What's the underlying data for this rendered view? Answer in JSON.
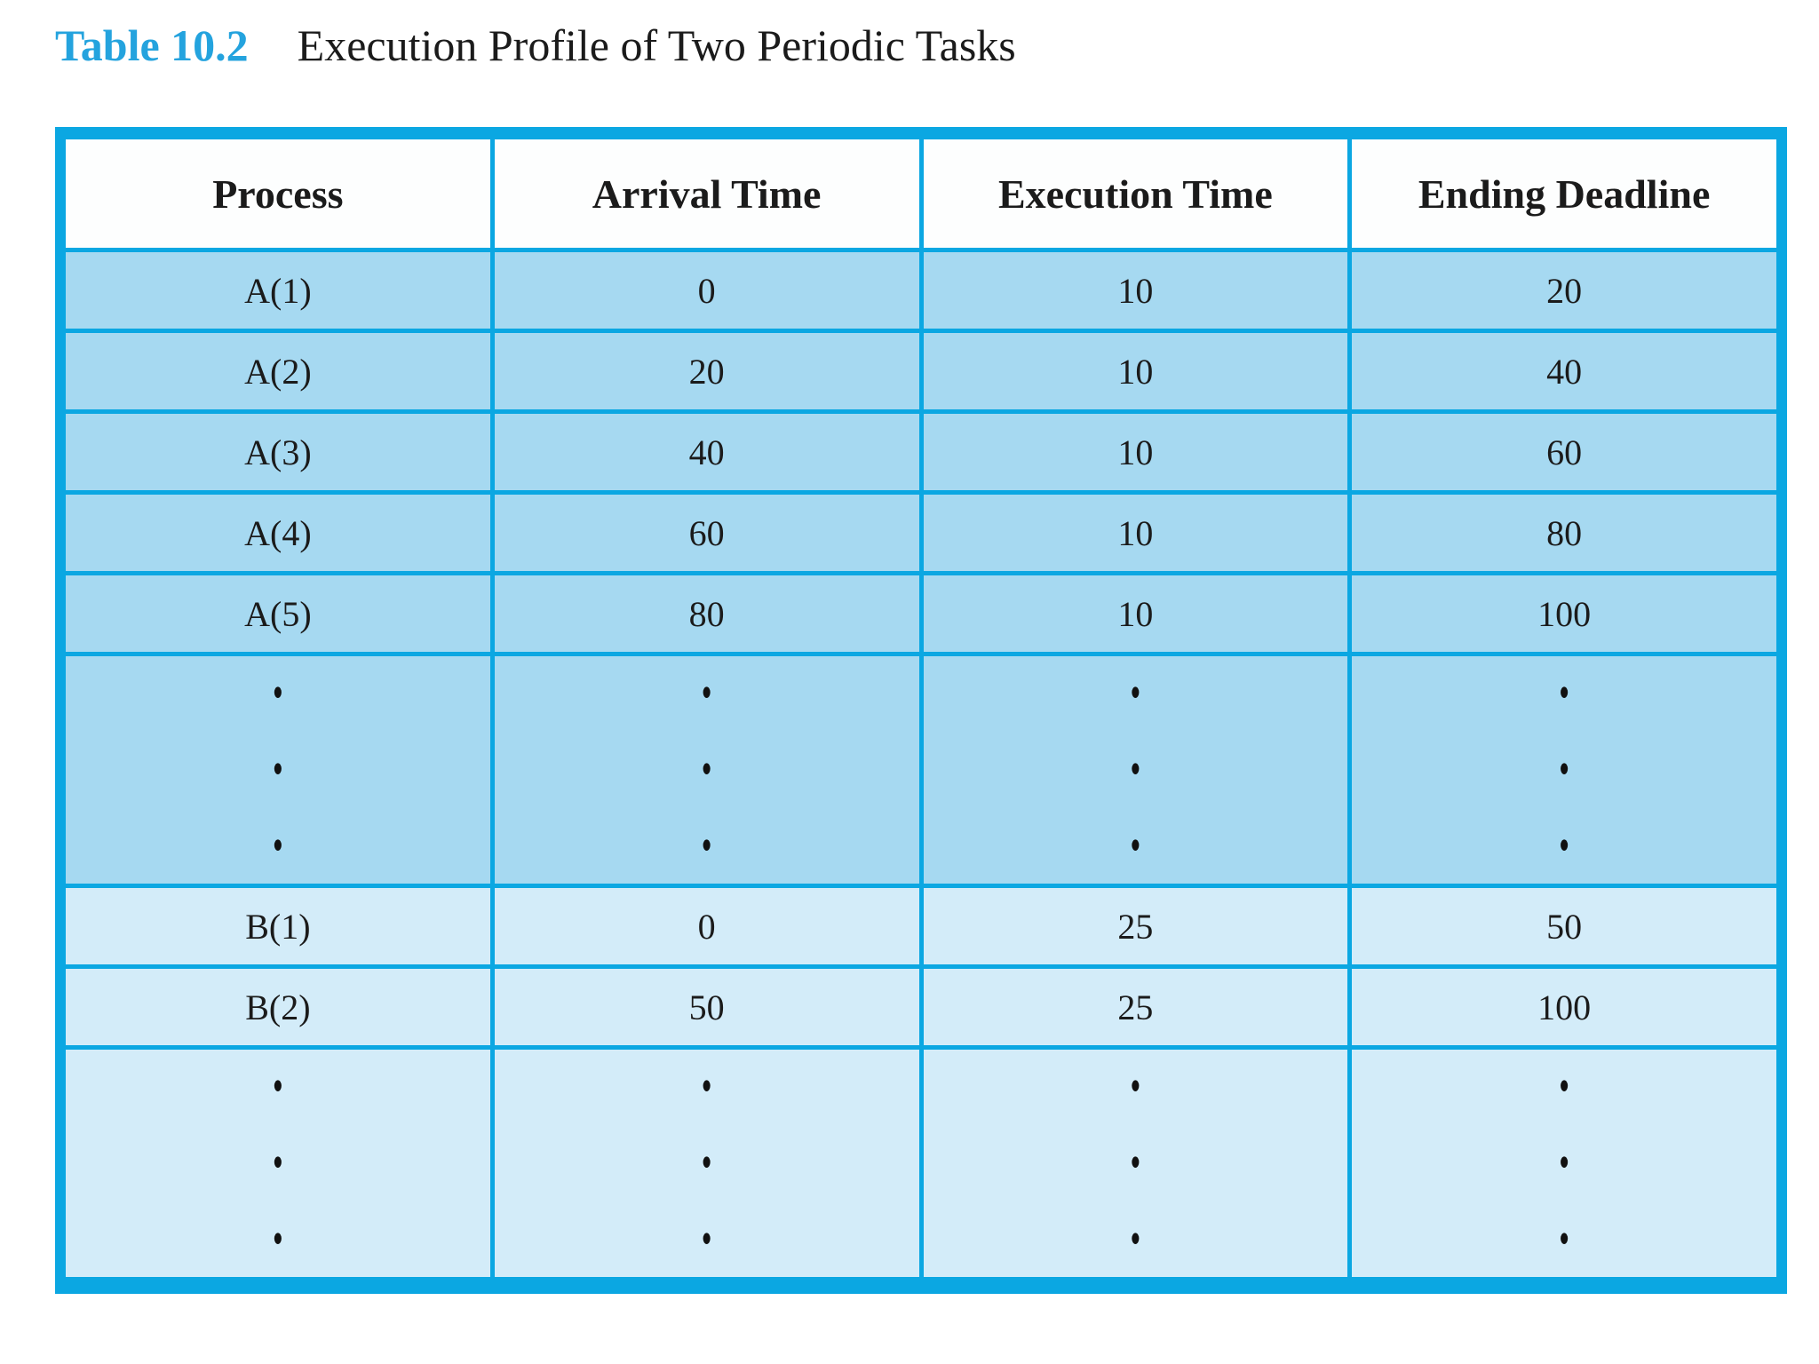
{
  "caption": {
    "label": "Table 10.2",
    "title": "Execution Profile of Two Periodic Tasks"
  },
  "colors": {
    "caption_accent": "#24a3de",
    "table_border": "#0ba7e2",
    "header_bg": "#fdfefe",
    "group_a_bg": "#a6d9f1",
    "group_b_bg": "#d3ecf9",
    "text": "#1b1b1b"
  },
  "table": {
    "columns": [
      "Process",
      "Arrival Time",
      "Execution Time",
      "Ending Deadline"
    ],
    "ellipsis_symbol": "•",
    "ellipsis_dots_per_cell": 3,
    "groups": [
      {
        "name": "A",
        "bg": "#a6d9f1",
        "rows": [
          [
            "A(1)",
            "0",
            "10",
            "20"
          ],
          [
            "A(2)",
            "20",
            "10",
            "40"
          ],
          [
            "A(3)",
            "40",
            "10",
            "60"
          ],
          [
            "A(4)",
            "60",
            "10",
            "80"
          ],
          [
            "A(5)",
            "80",
            "10",
            "100"
          ]
        ],
        "ellipsis": true
      },
      {
        "name": "B",
        "bg": "#d3ecf9",
        "rows": [
          [
            "B(1)",
            "0",
            "25",
            "50"
          ],
          [
            "B(2)",
            "50",
            "25",
            "100"
          ]
        ],
        "ellipsis": true
      }
    ]
  },
  "chart_data": {
    "type": "table",
    "title": "Table 10.2  Execution Profile of Two Periodic Tasks",
    "columns": [
      "Process",
      "Arrival Time",
      "Execution Time",
      "Ending Deadline"
    ],
    "rows": [
      [
        "A(1)",
        0,
        10,
        20
      ],
      [
        "A(2)",
        20,
        10,
        40
      ],
      [
        "A(3)",
        40,
        10,
        60
      ],
      [
        "A(4)",
        60,
        10,
        80
      ],
      [
        "A(5)",
        80,
        10,
        100
      ],
      [
        "⋮",
        "⋮",
        "⋮",
        "⋮"
      ],
      [
        "B(1)",
        0,
        25,
        50
      ],
      [
        "B(2)",
        50,
        25,
        100
      ],
      [
        "⋮",
        "⋮",
        "⋮",
        "⋮"
      ]
    ],
    "layout_hints": {
      "group_a_row_color": "#a6d9f1",
      "group_b_row_color": "#d3ecf9",
      "header_row_color": "#ffffff",
      "grid_color": "#0ba7e2"
    }
  }
}
